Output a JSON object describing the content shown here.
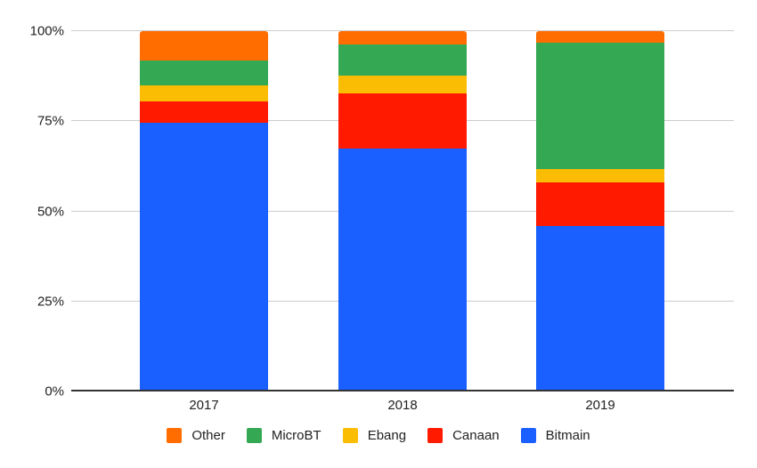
{
  "chart_data": {
    "type": "bar",
    "stacked": true,
    "percent_stacked": true,
    "title": "",
    "xlabel": "",
    "ylabel": "",
    "categories": [
      "2017",
      "2018",
      "2019"
    ],
    "series": [
      {
        "name": "Bitmain",
        "color": "#1a5fff",
        "values": [
          74.5,
          67.3,
          45.9
        ]
      },
      {
        "name": "Canaan",
        "color": "#ff1a00",
        "values": [
          5.9,
          15.5,
          12.0
        ]
      },
      {
        "name": "Ebang",
        "color": "#fbbc04",
        "values": [
          4.6,
          4.8,
          3.8
        ]
      },
      {
        "name": "MicroBT",
        "color": "#34a853",
        "values": [
          6.9,
          8.7,
          35.1
        ]
      },
      {
        "name": "Other",
        "color": "#ff6d01",
        "values": [
          8.1,
          3.7,
          3.2
        ]
      }
    ],
    "ylim": [
      0,
      100
    ],
    "yticks": [
      "0%",
      "25%",
      "50%",
      "75%",
      "100%"
    ],
    "grid": true,
    "legend_position": "bottom",
    "legend_order": [
      "Other",
      "MicroBT",
      "Ebang",
      "Canaan",
      "Bitmain"
    ]
  },
  "axis": {
    "y_ticks": [
      {
        "label": "100%",
        "value": 100
      },
      {
        "label": "75%",
        "value": 75
      },
      {
        "label": "50%",
        "value": 50
      },
      {
        "label": "25%",
        "value": 25
      },
      {
        "label": "0%",
        "value": 0
      }
    ],
    "x_ticks": [
      "2017",
      "2018",
      "2019"
    ]
  },
  "legend": [
    {
      "label": "Other",
      "color": "#ff6d01"
    },
    {
      "label": "MicroBT",
      "color": "#34a853"
    },
    {
      "label": "Ebang",
      "color": "#fbbc04"
    },
    {
      "label": "Canaan",
      "color": "#ff1a00"
    },
    {
      "label": "Bitmain",
      "color": "#1a5fff"
    }
  ]
}
